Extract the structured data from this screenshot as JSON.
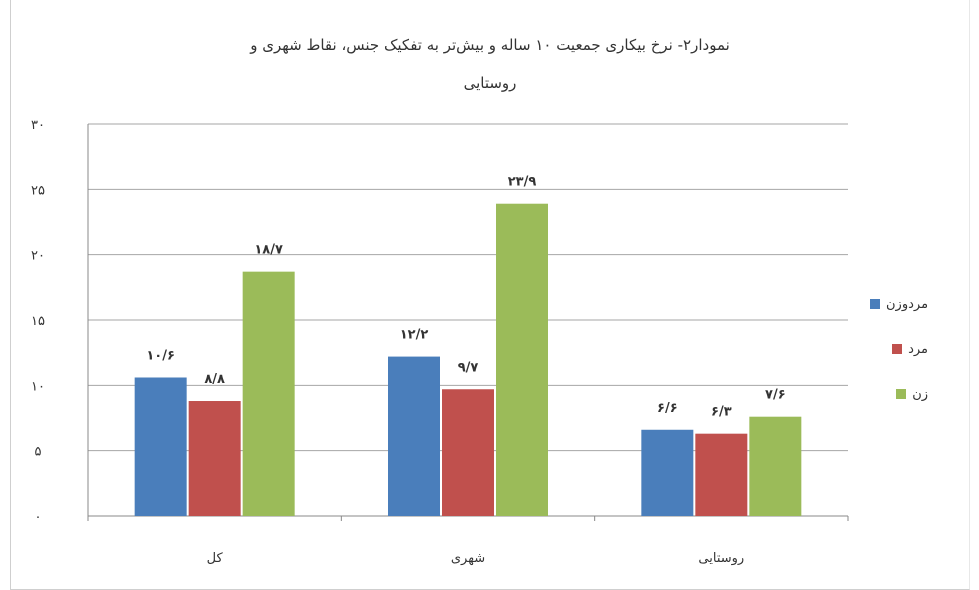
{
  "chart_data": {
    "type": "bar",
    "title_line1": "نمودار۲- نرخ بیکاری جمعیت ۱۰ ساله و بیش‌تر به تفکیک جنس، نقاط شهری و",
    "title_line2": "روستایی",
    "categories": [
      "کل",
      "شهری",
      "روستایی"
    ],
    "series": [
      {
        "name": "مردوزن",
        "color": "#4a7ebb",
        "values": [
          10.6,
          12.2,
          6.6
        ],
        "labels": [
          "۱۰/۶",
          "۱۲/۲",
          "۶/۶"
        ]
      },
      {
        "name": "مرد",
        "color": "#c0504d",
        "values": [
          8.8,
          9.7,
          6.3
        ],
        "labels": [
          "۸/۸",
          "۹/۷",
          "۶/۳"
        ]
      },
      {
        "name": "زن",
        "color": "#9bbb59",
        "values": [
          18.7,
          23.9,
          7.6
        ],
        "labels": [
          "۱۸/۷",
          "۲۳/۹",
          "۷/۶"
        ]
      }
    ],
    "ylim": [
      0,
      30
    ],
    "yticks": [
      0,
      5,
      10,
      15,
      20,
      25,
      30
    ],
    "ytick_labels": [
      "۰",
      "۵",
      "۱۰",
      "۱۵",
      "۲۰",
      "۲۵",
      "۳۰"
    ],
    "grid": true,
    "legend_position": "right"
  }
}
